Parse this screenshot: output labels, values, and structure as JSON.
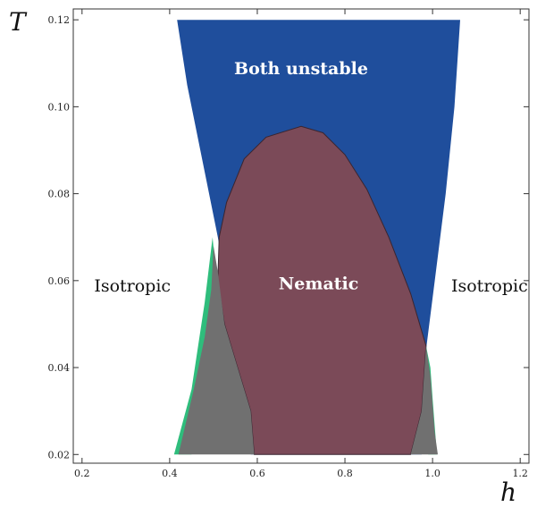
{
  "chart_data": {
    "type": "area",
    "title": "",
    "xlabel": "h",
    "ylabel": "T",
    "xlim": [
      0.18,
      1.22
    ],
    "ylim": [
      0.018,
      0.1225
    ],
    "xticks": [
      0.2,
      0.4,
      0.6,
      0.8,
      1.0,
      1.2
    ],
    "xtick_labels": [
      "0.2",
      "0.4",
      "0.6",
      "0.8",
      "1.0",
      "1.2"
    ],
    "yticks": [
      0.02,
      0.04,
      0.06,
      0.08,
      0.1,
      0.12
    ],
    "ytick_labels": [
      "0.02",
      "0.04",
      "0.06",
      "0.08",
      "0.10",
      "0.12"
    ],
    "grid": false,
    "regions": [
      {
        "name": "coexistence_left",
        "color": "#2fbd7c",
        "polygon": [
          [
            0.41,
            0.02
          ],
          [
            0.45,
            0.035
          ],
          [
            0.48,
            0.055
          ],
          [
            0.498,
            0.07
          ],
          [
            0.505,
            0.062
          ],
          [
            0.5,
            0.05
          ],
          [
            0.48,
            0.036
          ],
          [
            0.45,
            0.02
          ]
        ]
      },
      {
        "name": "coexistence_right",
        "color": "#2fbd7c",
        "polygon": [
          [
            0.985,
            0.045
          ],
          [
            0.995,
            0.04
          ],
          [
            1.0,
            0.033
          ],
          [
            1.01,
            0.02
          ],
          [
            0.99,
            0.02
          ],
          [
            0.985,
            0.035
          ]
        ]
      },
      {
        "name": "both_unstable",
        "label": "Both unstable",
        "label_at": [
          0.7,
          0.1075
        ],
        "label_color": "#ffffff",
        "color": "#1f4e9c",
        "polygon": [
          [
            0.417,
            0.12
          ],
          [
            1.063,
            0.12
          ],
          [
            1.05,
            0.1
          ],
          [
            1.03,
            0.08
          ],
          [
            1.005,
            0.06
          ],
          [
            0.98,
            0.04
          ],
          [
            0.975,
            0.02
          ],
          [
            0.585,
            0.02
          ],
          [
            0.58,
            0.03
          ],
          [
            0.545,
            0.05
          ],
          [
            0.51,
            0.07
          ],
          [
            0.47,
            0.09
          ],
          [
            0.44,
            0.105
          ]
        ]
      },
      {
        "name": "nematic",
        "label": "Nematic",
        "label_at": [
          0.74,
          0.058
        ],
        "label_color": "#ffffff",
        "color": "#7b4a58",
        "polygon": [
          [
            0.593,
            0.02
          ],
          [
            0.585,
            0.03
          ],
          [
            0.555,
            0.04
          ],
          [
            0.525,
            0.05
          ],
          [
            0.51,
            0.06
          ],
          [
            0.513,
            0.07
          ],
          [
            0.53,
            0.078
          ],
          [
            0.57,
            0.088
          ],
          [
            0.62,
            0.093
          ],
          [
            0.7,
            0.0955
          ],
          [
            0.75,
            0.094
          ],
          [
            0.8,
            0.089
          ],
          [
            0.85,
            0.081
          ],
          [
            0.9,
            0.07
          ],
          [
            0.95,
            0.057
          ],
          [
            0.985,
            0.045
          ],
          [
            0.975,
            0.03
          ],
          [
            0.95,
            0.02
          ]
        ]
      },
      {
        "name": "gray_left",
        "color": "#707070",
        "polygon": [
          [
            0.42,
            0.02
          ],
          [
            0.455,
            0.035
          ],
          [
            0.48,
            0.047
          ],
          [
            0.495,
            0.058
          ],
          [
            0.5,
            0.068
          ],
          [
            0.51,
            0.062
          ],
          [
            0.525,
            0.05
          ],
          [
            0.555,
            0.04
          ],
          [
            0.585,
            0.03
          ],
          [
            0.593,
            0.02
          ]
        ]
      },
      {
        "name": "gray_right",
        "color": "#707070",
        "polygon": [
          [
            0.95,
            0.02
          ],
          [
            0.975,
            0.03
          ],
          [
            0.985,
            0.045
          ],
          [
            0.995,
            0.038
          ],
          [
            1.005,
            0.025
          ],
          [
            1.012,
            0.02
          ]
        ]
      }
    ],
    "annotations": [
      {
        "text": "Isotropic",
        "at": [
          0.315,
          0.0575
        ],
        "color": "#111111"
      },
      {
        "text": "Isotropic",
        "at": [
          1.13,
          0.0575
        ],
        "color": "#111111"
      }
    ]
  }
}
